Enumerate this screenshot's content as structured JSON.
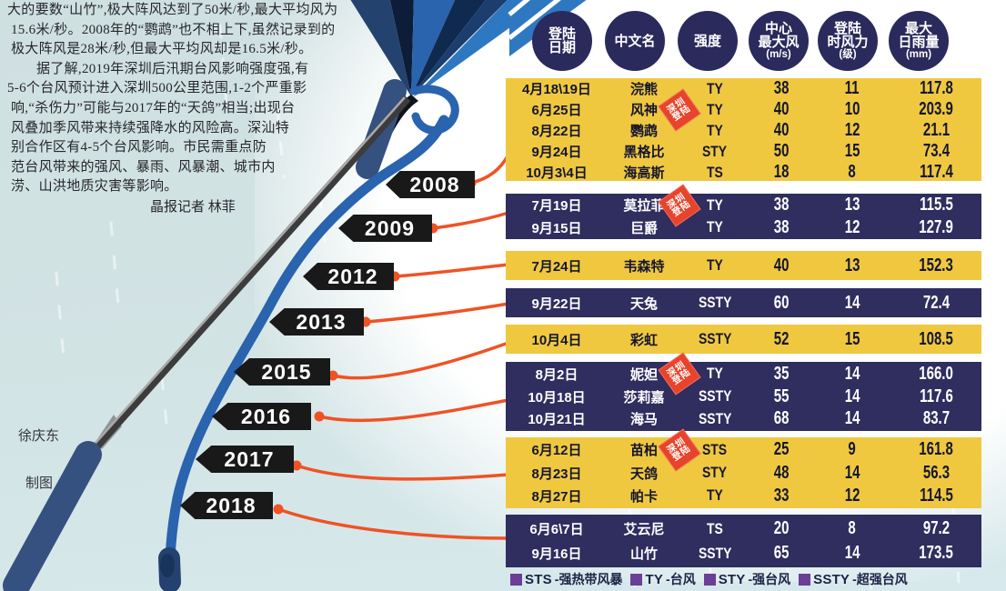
{
  "article": {
    "lines": [
      "大的要数“山竹”,极大阵风达到了50米/秒,最大平均风为",
      "15.6米/秒。2008年的“鹦鹉”也不相上下,虽然记录到的",
      "极大阵风是28米/秒,但最大平均风却是16.5米/秒。",
      "据了解,2019年深圳后汛期台风影响强度强,有",
      "5-6个台风预计进入深圳500公里范围,1-2个严重影",
      "响,“杀伤力”可能与2017年的“天鸽”相当;出现台",
      "风叠加季风带来持续强降水的风险高。深汕特",
      "别合作区有4-5个台风影响。市民需重点防",
      "范台风带来的强风、暴雨、风暴潮、城市内",
      "涝、山洪地质灾害等影响。"
    ],
    "byline": "晶报记者 林菲",
    "credit_name": "徐庆东",
    "credit_role": "制图"
  },
  "table": {
    "headers": [
      [
        "登陆",
        "日期"
      ],
      [
        "中文名"
      ],
      [
        "强度"
      ],
      [
        "中心",
        "最大风",
        "(m/s)"
      ],
      [
        "登陆",
        "时风力",
        "(级)"
      ],
      [
        "最大",
        "日雨量",
        "(mm)"
      ]
    ],
    "badge_lines": [
      "深圳",
      "登陆"
    ],
    "groups": [
      {
        "year": "2008",
        "theme": "yellow",
        "rows": [
          {
            "date": "4月18\\19日",
            "name": "浣熊",
            "badge": false,
            "intensity": "TY",
            "wind": "38",
            "force": "11",
            "rain": "117.8"
          },
          {
            "date": "6月25日",
            "name": "风神",
            "badge": true,
            "intensity": "TY",
            "wind": "40",
            "force": "10",
            "rain": "203.9"
          },
          {
            "date": "8月22日",
            "name": "鹦鹉",
            "badge": false,
            "intensity": "TY",
            "wind": "40",
            "force": "12",
            "rain": "21.1"
          },
          {
            "date": "9月24日",
            "name": "黑格比",
            "badge": false,
            "intensity": "STY",
            "wind": "50",
            "force": "15",
            "rain": "73.4"
          },
          {
            "date": "10月3\\4日",
            "name": "海高斯",
            "badge": false,
            "intensity": "TS",
            "wind": "18",
            "force": "8",
            "rain": "117.4"
          }
        ]
      },
      {
        "year": "2009",
        "theme": "navy",
        "rows": [
          {
            "date": "7月19日",
            "name": "莫拉菲",
            "badge": true,
            "intensity": "TY",
            "wind": "38",
            "force": "13",
            "rain": "115.5"
          },
          {
            "date": "9月15日",
            "name": "巨爵",
            "badge": false,
            "intensity": "TY",
            "wind": "38",
            "force": "12",
            "rain": "127.9"
          }
        ]
      },
      {
        "year": "2012",
        "theme": "yellow",
        "rows": [
          {
            "date": "7月24日",
            "name": "韦森特",
            "badge": false,
            "intensity": "TY",
            "wind": "40",
            "force": "13",
            "rain": "152.3"
          }
        ]
      },
      {
        "year": "2013",
        "theme": "navy",
        "rows": [
          {
            "date": "9月22日",
            "name": "天兔",
            "badge": false,
            "intensity": "SSTY",
            "wind": "60",
            "force": "14",
            "rain": "72.4"
          }
        ]
      },
      {
        "year": "2015",
        "theme": "yellow",
        "rows": [
          {
            "date": "10月4日",
            "name": "彩虹",
            "badge": false,
            "intensity": "SSTY",
            "wind": "52",
            "force": "15",
            "rain": "108.5"
          }
        ]
      },
      {
        "year": "2016",
        "theme": "navy",
        "rows": [
          {
            "date": "8月2日",
            "name": "妮妲",
            "badge": true,
            "intensity": "TY",
            "wind": "35",
            "force": "14",
            "rain": "166.0"
          },
          {
            "date": "10月18日",
            "name": "莎莉嘉",
            "badge": false,
            "intensity": "SSTY",
            "wind": "55",
            "force": "14",
            "rain": "117.6"
          },
          {
            "date": "10月21日",
            "name": "海马",
            "badge": false,
            "intensity": "SSTY",
            "wind": "68",
            "force": "14",
            "rain": "83.7"
          }
        ]
      },
      {
        "year": "2017",
        "theme": "yellow",
        "rows": [
          {
            "date": "6月12日",
            "name": "苗柏",
            "badge": true,
            "intensity": "STS",
            "wind": "25",
            "force": "9",
            "rain": "161.8"
          },
          {
            "date": "8月23日",
            "name": "天鸽",
            "badge": false,
            "intensity": "STY",
            "wind": "48",
            "force": "14",
            "rain": "56.3"
          },
          {
            "date": "8月27日",
            "name": "帕卡",
            "badge": false,
            "intensity": "TY",
            "wind": "33",
            "force": "12",
            "rain": "114.5"
          }
        ]
      },
      {
        "year": "2018",
        "theme": "navy",
        "rows": [
          {
            "date": "6月6\\7日",
            "name": "艾云尼",
            "badge": false,
            "intensity": "TS",
            "wind": "20",
            "force": "8",
            "rain": "97.2"
          },
          {
            "date": "9月16日",
            "name": "山竹",
            "badge": false,
            "intensity": "SSTY",
            "wind": "65",
            "force": "14",
            "rain": "173.5"
          }
        ]
      }
    ],
    "legend": [
      {
        "code": "STS",
        "label": "-强热带风暴"
      },
      {
        "code": "TY",
        "label": "-台风"
      },
      {
        "code": "STY",
        "label": "-强台风"
      },
      {
        "code": "SSTY",
        "label": "-超强台风"
      }
    ]
  },
  "colors": {
    "yellow_band": "#efc840",
    "navy_band": "#302d5f",
    "header_circle": "#2b2a5c",
    "badge_red": "#e8432b",
    "connector_orange": "#f05224",
    "legend_purple": "#6b3e97",
    "flag_black": "#191919",
    "umbrella_blue": "#2a63ae",
    "background_cyan": "#cfe0e1"
  }
}
